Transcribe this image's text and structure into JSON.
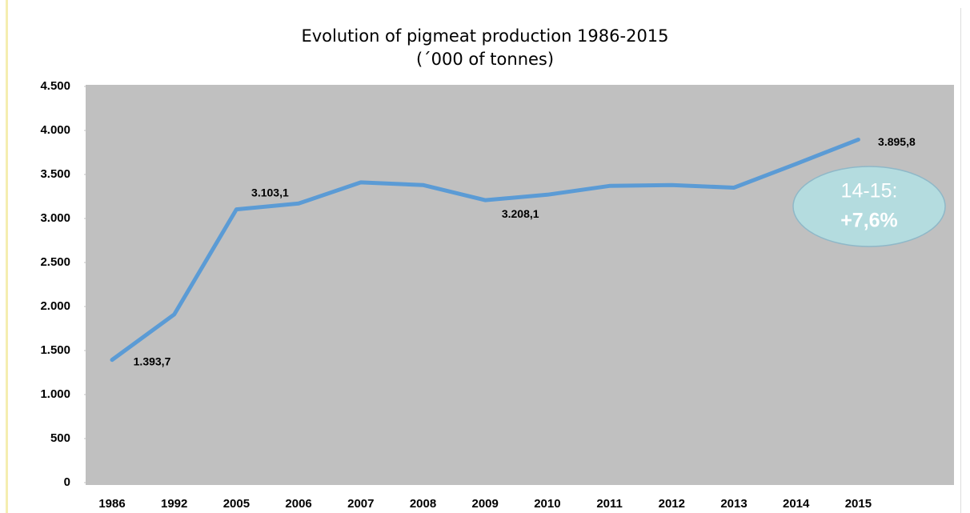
{
  "chart_data": {
    "type": "line",
    "title": "Evolution of pigmeat production 1986-2015",
    "subtitle": "(´000 of tonnes)",
    "categories": [
      "1986",
      "1992",
      "2005",
      "2006",
      "2007",
      "2008",
      "2009",
      "2010",
      "2011",
      "2012",
      "2013",
      "2014",
      "2015"
    ],
    "series": [
      {
        "name": "Pigmeat production",
        "color": "#5b9bd5",
        "values": [
          1393.7,
          1910,
          3103.1,
          3170,
          3410,
          3380,
          3208.1,
          3270,
          3370,
          3380,
          3350,
          3620,
          3895.8
        ],
        "value_labels": [
          "1.393,7",
          null,
          "3.103,1",
          null,
          null,
          null,
          "3.208,1",
          null,
          null,
          null,
          null,
          null,
          "3.895,8"
        ]
      }
    ],
    "ylim": [
      0,
      4500
    ],
    "yticks": [
      0,
      500,
      {
        "value": 1000,
        "label": "1.000"
      },
      {
        "value": 1500,
        "label": "1.500"
      },
      {
        "value": 2000,
        "label": "2.000"
      },
      {
        "value": 2500,
        "label": "2.500"
      },
      {
        "value": 3000,
        "label": "3.000"
      },
      {
        "value": 3500,
        "label": "3.500"
      },
      {
        "value": 4000,
        "label": "4.000"
      },
      {
        "value": 4500,
        "label": "4.500"
      }
    ],
    "grid": false,
    "annotations": [
      "14-15:",
      "+7,6%"
    ]
  }
}
